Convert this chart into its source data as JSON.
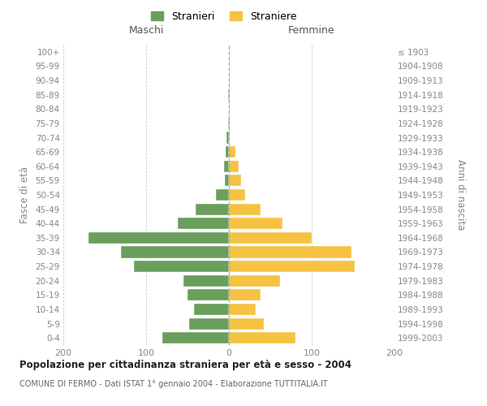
{
  "age_groups": [
    "0-4",
    "5-9",
    "10-14",
    "15-19",
    "20-24",
    "25-29",
    "30-34",
    "35-39",
    "40-44",
    "45-49",
    "50-54",
    "55-59",
    "60-64",
    "65-69",
    "70-74",
    "75-79",
    "80-84",
    "85-89",
    "90-94",
    "95-99",
    "100+"
  ],
  "birth_years": [
    "1999-2003",
    "1994-1998",
    "1989-1993",
    "1984-1988",
    "1979-1983",
    "1974-1978",
    "1969-1973",
    "1964-1968",
    "1959-1963",
    "1954-1958",
    "1949-1953",
    "1944-1948",
    "1939-1943",
    "1934-1938",
    "1929-1933",
    "1924-1928",
    "1919-1923",
    "1914-1918",
    "1909-1913",
    "1904-1908",
    "≤ 1903"
  ],
  "maschi": [
    80,
    48,
    42,
    50,
    55,
    115,
    130,
    170,
    62,
    40,
    16,
    5,
    6,
    4,
    3,
    1,
    0,
    1,
    0,
    0,
    0
  ],
  "femmine": [
    80,
    42,
    32,
    38,
    62,
    152,
    148,
    100,
    65,
    38,
    20,
    15,
    12,
    8,
    1,
    1,
    1,
    1,
    1,
    0,
    0
  ],
  "color_maschi": "#6a9e5b",
  "color_femmine": "#f5c242",
  "background_color": "#ffffff",
  "grid_color": "#cccccc",
  "title": "Popolazione per cittadinanza straniera per età e sesso - 2004",
  "subtitle": "COMUNE DI FERMO - Dati ISTAT 1° gennaio 2004 - Elaborazione TUTTITALIA.IT",
  "xlabel_left": "Maschi",
  "xlabel_right": "Femmine",
  "ylabel_left": "Fasce di età",
  "ylabel_right": "Anni di nascita",
  "legend_maschi": "Stranieri",
  "legend_femmine": "Straniere",
  "xlim": 200,
  "label_color": "#888888",
  "text_color": "#555555"
}
